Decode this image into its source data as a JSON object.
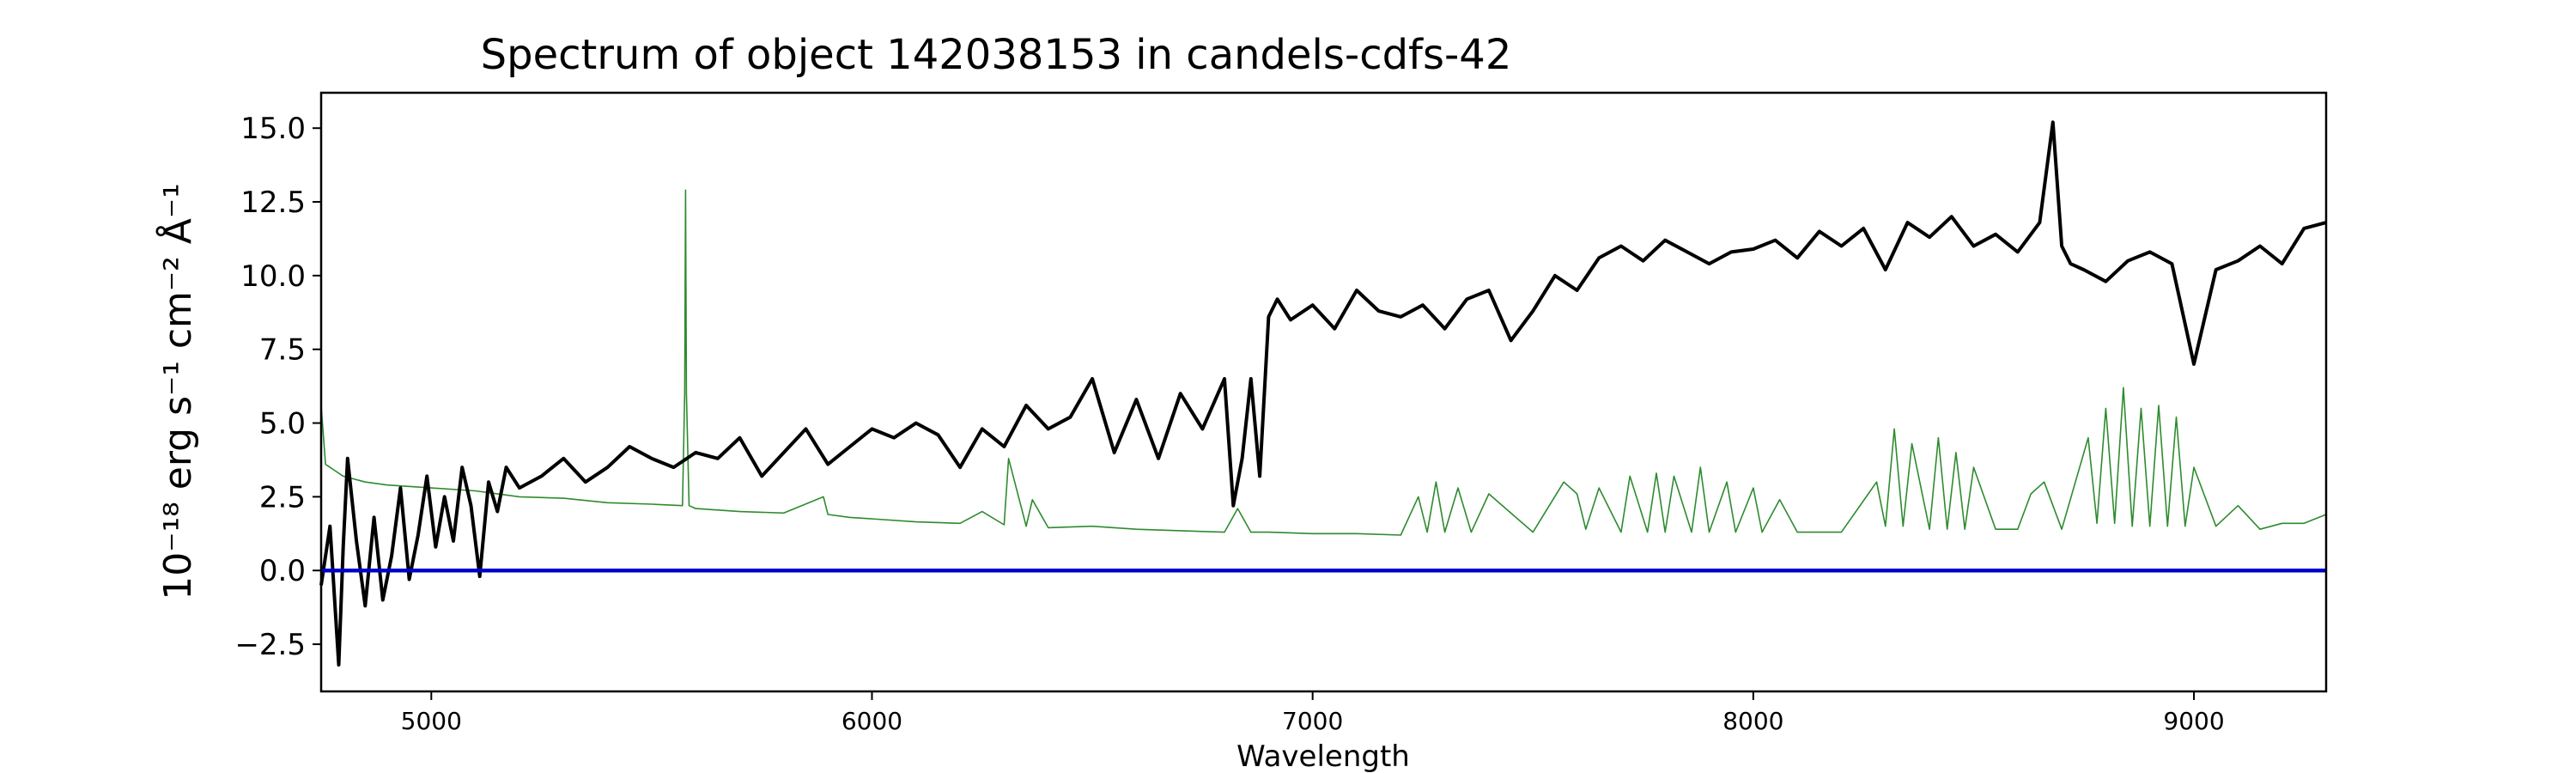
{
  "chart_data": {
    "type": "line",
    "title": "Spectrum of object 142038153 in candels-cdfs-42",
    "xlabel": "Wavelength",
    "ylabel": "10⁻¹⁸ erg s⁻¹ cm⁻² Å⁻¹",
    "xlim": [
      4750,
      9300
    ],
    "ylim": [
      -4.1,
      16.2
    ],
    "xticks": [
      5000,
      6000,
      7000,
      8000,
      9000
    ],
    "yticks": [
      -2.5,
      0.0,
      2.5,
      5.0,
      7.5,
      10.0,
      12.5,
      15.0
    ],
    "ytick_labels": [
      "−2.5",
      "0.0",
      "2.5",
      "5.0",
      "7.5",
      "10.0",
      "12.5",
      "15.0"
    ],
    "grid": false,
    "colors": {
      "spectrum": "#000000",
      "sky": "#2e8b2e",
      "zero": "#0000cc"
    },
    "series": [
      {
        "role": "spectrum",
        "x": [
          4750,
          4770,
          4790,
          4800,
          4810,
          4830,
          4850,
          4870,
          4890,
          4910,
          4930,
          4950,
          4970,
          4990,
          5000,
          5010,
          5030,
          5050,
          5070,
          5090,
          5110,
          5130,
          5150,
          5170,
          5200,
          5250,
          5300,
          5350,
          5400,
          5450,
          5500,
          5550,
          5600,
          5650,
          5700,
          5750,
          5800,
          5850,
          5900,
          5950,
          6000,
          6050,
          6100,
          6150,
          6200,
          6250,
          6300,
          6350,
          6400,
          6450,
          6500,
          6550,
          6600,
          6650,
          6700,
          6750,
          6800,
          6820,
          6840,
          6860,
          6880,
          6900,
          6920,
          6950,
          7000,
          7050,
          7100,
          7150,
          7200,
          7250,
          7300,
          7350,
          7400,
          7450,
          7500,
          7550,
          7600,
          7650,
          7700,
          7750,
          7800,
          7850,
          7900,
          7950,
          8000,
          8050,
          8100,
          8150,
          8200,
          8250,
          8300,
          8350,
          8400,
          8450,
          8500,
          8550,
          8600,
          8650,
          8680,
          8700,
          8720,
          8750,
          8800,
          8850,
          8900,
          8950,
          9000,
          9050,
          9100,
          9150,
          9200,
          9250,
          9300
        ],
        "y": [
          -0.5,
          1.5,
          -3.2,
          0.8,
          3.8,
          1.0,
          -1.2,
          1.8,
          -1.0,
          0.5,
          2.8,
          -0.3,
          1.2,
          3.2,
          2.0,
          0.8,
          2.5,
          1.0,
          3.5,
          2.2,
          -0.2,
          3.0,
          2.0,
          3.5,
          2.8,
          3.2,
          3.8,
          3.0,
          3.5,
          4.2,
          3.8,
          3.5,
          4.0,
          3.8,
          4.5,
          3.2,
          4.0,
          4.8,
          3.6,
          4.2,
          4.8,
          4.5,
          5.0,
          4.6,
          3.5,
          4.8,
          4.2,
          5.6,
          4.8,
          5.2,
          6.5,
          4.0,
          5.8,
          3.8,
          6.0,
          4.8,
          6.5,
          2.2,
          3.8,
          6.5,
          3.2,
          8.6,
          9.2,
          8.5,
          9.0,
          8.2,
          9.5,
          8.8,
          8.6,
          9.0,
          8.2,
          9.2,
          9.5,
          7.8,
          8.8,
          10.0,
          9.5,
          10.6,
          11.0,
          10.5,
          11.2,
          10.8,
          10.4,
          10.8,
          10.9,
          11.2,
          10.6,
          11.5,
          11.0,
          11.6,
          10.2,
          11.8,
          11.3,
          12.0,
          11.0,
          11.4,
          10.8,
          11.8,
          15.2,
          11.0,
          10.4,
          10.2,
          9.8,
          10.5,
          10.8,
          10.4,
          7.0,
          10.2,
          10.5,
          11.0,
          10.4,
          11.6,
          11.8
        ]
      },
      {
        "role": "sky",
        "x": [
          4750,
          4760,
          4780,
          4800,
          4850,
          4900,
          5000,
          5100,
          5200,
          5300,
          5400,
          5500,
          5570,
          5575,
          5577,
          5579,
          5585,
          5600,
          5700,
          5800,
          5890,
          5900,
          5950,
          6000,
          6100,
          6200,
          6250,
          6300,
          6310,
          6350,
          6364,
          6400,
          6500,
          6600,
          6700,
          6800,
          6830,
          6860,
          6900,
          7000,
          7100,
          7200,
          7240,
          7260,
          7280,
          7300,
          7330,
          7360,
          7400,
          7500,
          7570,
          7600,
          7620,
          7650,
          7700,
          7720,
          7760,
          7780,
          7800,
          7820,
          7860,
          7880,
          7900,
          7940,
          7960,
          8000,
          8020,
          8060,
          8100,
          8200,
          8280,
          8300,
          8320,
          8340,
          8360,
          8400,
          8420,
          8440,
          8460,
          8480,
          8500,
          8550,
          8600,
          8630,
          8660,
          8700,
          8760,
          8780,
          8800,
          8820,
          8840,
          8860,
          8880,
          8900,
          8920,
          8940,
          8960,
          8980,
          9000,
          9050,
          9100,
          9150,
          9200,
          9250,
          9300
        ],
        "y": [
          5.6,
          3.6,
          3.4,
          3.2,
          3.0,
          2.9,
          2.8,
          2.7,
          2.5,
          2.45,
          2.3,
          2.25,
          2.2,
          6.0,
          12.9,
          6.0,
          2.2,
          2.1,
          2.0,
          1.95,
          2.5,
          1.9,
          1.8,
          1.75,
          1.65,
          1.6,
          2.0,
          1.55,
          3.8,
          1.5,
          2.4,
          1.45,
          1.5,
          1.4,
          1.35,
          1.3,
          2.1,
          1.3,
          1.3,
          1.25,
          1.25,
          1.2,
          2.5,
          1.3,
          3.0,
          1.3,
          2.8,
          1.3,
          2.6,
          1.3,
          3.0,
          2.6,
          1.4,
          2.8,
          1.3,
          3.2,
          1.3,
          3.3,
          1.3,
          3.2,
          1.3,
          3.5,
          1.3,
          3.0,
          1.3,
          2.8,
          1.3,
          2.4,
          1.3,
          1.3,
          3.0,
          1.5,
          4.8,
          1.5,
          4.3,
          1.4,
          4.5,
          1.4,
          4.0,
          1.4,
          3.5,
          1.4,
          1.4,
          2.6,
          3.0,
          1.4,
          4.5,
          1.6,
          5.5,
          1.6,
          6.2,
          1.5,
          5.5,
          1.5,
          5.6,
          1.5,
          5.2,
          1.5,
          3.5,
          1.5,
          2.2,
          1.4,
          1.6,
          1.6,
          1.9
        ]
      },
      {
        "role": "zero",
        "x": [
          4750,
          9300
        ],
        "y": [
          0,
          0
        ]
      }
    ]
  }
}
